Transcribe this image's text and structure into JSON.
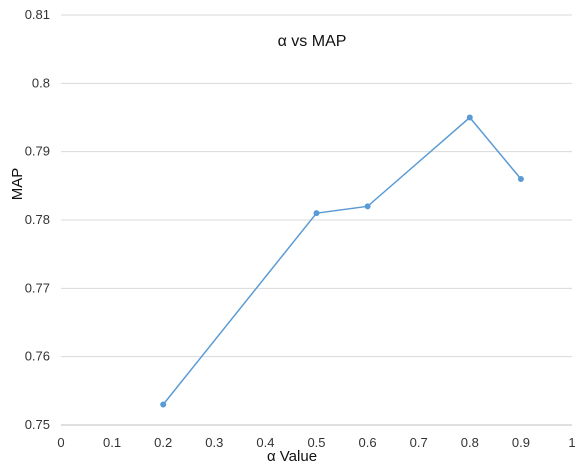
{
  "chart_data": {
    "type": "line",
    "title": "α  vs MAP",
    "xlabel": "α Value",
    "ylabel": "MAP",
    "xlim": [
      0,
      1
    ],
    "ylim": [
      0.75,
      0.81
    ],
    "x_ticks": [
      "0",
      "0.1",
      "0.2",
      "0.3",
      "0.4",
      "0.5",
      "0.6",
      "0.7",
      "0.8",
      "0.9",
      "1"
    ],
    "y_ticks": [
      "0.75",
      "0.76",
      "0.77",
      "0.78",
      "0.79",
      "0.8",
      "0.81"
    ],
    "grid": true,
    "series": [
      {
        "color": "#5B9BD5",
        "x": [
          0.2,
          0.5,
          0.6,
          0.8,
          0.9
        ],
        "y": [
          0.753,
          0.781,
          0.782,
          0.795,
          0.786
        ]
      }
    ]
  }
}
